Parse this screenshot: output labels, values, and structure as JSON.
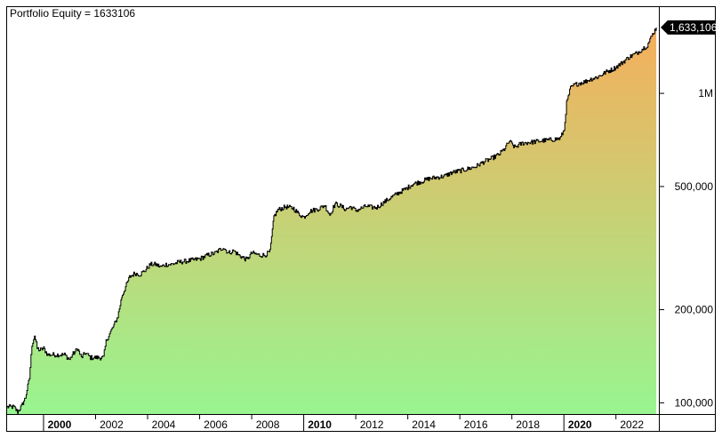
{
  "chart_data": {
    "type": "area",
    "title": "Portfolio Equity = 1633106",
    "last_value_label": "1,633,106",
    "xlabel": "",
    "ylabel": "",
    "y_scale": "log",
    "ylim": [
      92000,
      1900000
    ],
    "xlim": [
      1998.6,
      2023.65
    ],
    "y_ticks": [
      {
        "value": 100000,
        "label": "100,000"
      },
      {
        "value": 200000,
        "label": "200,000"
      },
      {
        "value": 500000,
        "label": "500,000"
      },
      {
        "value": 1000000,
        "label": "1M"
      }
    ],
    "x_ticks": [
      {
        "value": 2000,
        "label": "2000",
        "major": true
      },
      {
        "value": 2002,
        "label": "2002",
        "major": false
      },
      {
        "value": 2004,
        "label": "2004",
        "major": false
      },
      {
        "value": 2006,
        "label": "2006",
        "major": false
      },
      {
        "value": 2008,
        "label": "2008",
        "major": false
      },
      {
        "value": 2010,
        "label": "2010",
        "major": true
      },
      {
        "value": 2012,
        "label": "2012",
        "major": false
      },
      {
        "value": 2014,
        "label": "2014",
        "major": false
      },
      {
        "value": 2016,
        "label": "2016",
        "major": false
      },
      {
        "value": 2018,
        "label": "2018",
        "major": false
      },
      {
        "value": 2020,
        "label": "2020",
        "major": true
      },
      {
        "value": 2022,
        "label": "2022",
        "major": false
      }
    ],
    "grid": false,
    "colors": {
      "fill_top": "#f5ae5c",
      "fill_bottom": "#98f590",
      "line": "#000000",
      "last_label_bg": "#000000"
    },
    "series": [
      {
        "x": [
          1998.6,
          1998.85,
          1999.0,
          1999.15,
          1999.3,
          1999.45,
          1999.55,
          1999.65,
          1999.75,
          1999.85,
          2000.0,
          2000.15,
          2000.3,
          2000.5,
          2000.8,
          2001.0,
          2001.1,
          2001.2,
          2001.3,
          2001.45,
          2001.6,
          2001.8,
          2002.0,
          2002.3,
          2002.4,
          2002.5,
          2002.7,
          2002.85,
          2003.0,
          2003.15,
          2003.3,
          2003.5,
          2003.7,
          2003.9,
          2004.1,
          2004.3,
          2004.5,
          2004.7,
          2004.9,
          2005.2,
          2005.5,
          2005.8,
          2006.0,
          2006.3,
          2006.6,
          2006.9,
          2007.1,
          2007.3,
          2007.5,
          2007.8,
          2008.0,
          2008.3,
          2008.5,
          2008.7,
          2008.85,
          2009.0,
          2009.3,
          2009.6,
          2009.8,
          2010.0,
          2010.2,
          2010.4,
          2010.6,
          2010.8,
          2011.0,
          2011.2,
          2011.4,
          2011.6,
          2011.8,
          2012.0,
          2012.2,
          2012.4,
          2012.6,
          2012.8,
          2013.0,
          2013.3,
          2013.6,
          2013.9,
          2014.2,
          2014.5,
          2014.8,
          2015.1,
          2015.4,
          2015.7,
          2016.0,
          2016.3,
          2016.6,
          2016.9,
          2017.2,
          2017.5,
          2017.7,
          2017.9,
          2018.1,
          2018.4,
          2018.7,
          2019.0,
          2019.3,
          2019.6,
          2019.85,
          2020.0,
          2020.1,
          2020.25,
          2020.4,
          2020.6,
          2020.8,
          2021.0,
          2021.3,
          2021.6,
          2021.9,
          2022.2,
          2022.5,
          2022.8,
          2023.0,
          2023.2,
          2023.4,
          2023.55
        ],
        "values": [
          97000,
          97000,
          93500,
          97500,
          104000,
          120000,
          154000,
          165000,
          150000,
          148000,
          150000,
          143000,
          143000,
          143000,
          143000,
          138000,
          143000,
          146000,
          150000,
          140000,
          145000,
          140000,
          140000,
          140000,
          158000,
          165000,
          178000,
          190000,
          220000,
          237000,
          255000,
          262000,
          260000,
          268000,
          280000,
          280000,
          275000,
          280000,
          280000,
          285000,
          287000,
          290000,
          292000,
          300000,
          305000,
          318000,
          305000,
          310000,
          300000,
          290000,
          305000,
          300000,
          300000,
          308000,
          400000,
          420000,
          430000,
          425000,
          408000,
          398000,
          415000,
          420000,
          425000,
          435000,
          405000,
          440000,
          433000,
          422000,
          430000,
          418000,
          425000,
          432000,
          428000,
          428000,
          440000,
          458000,
          475000,
          490000,
          510000,
          518000,
          530000,
          535000,
          540000,
          555000,
          562000,
          570000,
          580000,
          600000,
          615000,
          635000,
          660000,
          700000,
          670000,
          690000,
          695000,
          700000,
          705000,
          710000,
          715000,
          760000,
          930000,
          1040000,
          1065000,
          1080000,
          1090000,
          1110000,
          1130000,
          1170000,
          1200000,
          1250000,
          1310000,
          1350000,
          1390000,
          1430000,
          1550000,
          1633106
        ]
      }
    ]
  }
}
